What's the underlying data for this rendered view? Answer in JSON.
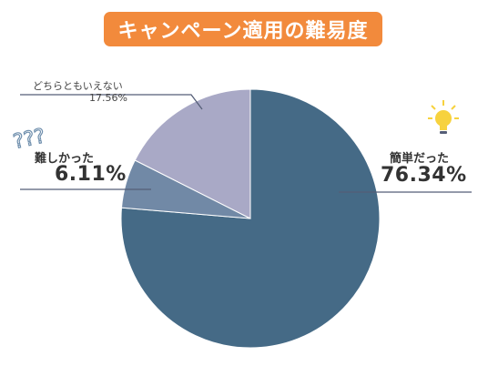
{
  "chart_data": {
    "type": "pie",
    "title": "キャンペーン適用の難易度",
    "slices": [
      {
        "label": "簡単だった",
        "value": 76.34,
        "value_text": "76.34%",
        "color": "#456a86"
      },
      {
        "label": "難しかった",
        "value": 6.11,
        "value_text": "6.11%",
        "color": "#7189a6"
      },
      {
        "label": "どちらともいえない",
        "value": 17.56,
        "value_text": "17.56%",
        "color": "#a9a9c6"
      }
    ]
  },
  "decorations": {
    "question_marks": "???",
    "question_color": "#6f8fad",
    "bulb_color": "#f7d23e"
  }
}
